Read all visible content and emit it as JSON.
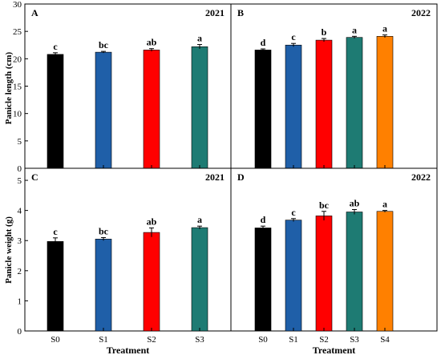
{
  "figure": {
    "y_label_top": "Panicle length (cm)",
    "y_label_bottom": "Panicle weight (g)",
    "x_label": "Treatment"
  },
  "chart_data": [
    {
      "type": "bar",
      "panel": "A",
      "year": "2021",
      "categories": [
        "S0",
        "S1",
        "S2",
        "S3"
      ],
      "values": [
        20.8,
        21.2,
        21.6,
        22.2
      ],
      "errors": [
        0.3,
        0.15,
        0.25,
        0.4
      ],
      "letters": [
        "c",
        "bc",
        "ab",
        "a"
      ],
      "colors": [
        "#000000",
        "#1f5fa8",
        "#ff0000",
        "#1e7b73"
      ],
      "ylim": [
        0,
        30
      ],
      "yticks": [
        0,
        5,
        10,
        15,
        20,
        25,
        30
      ],
      "ylabel": "Panicle length (cm)",
      "xlabel": "",
      "show_xticklabels": false
    },
    {
      "type": "bar",
      "panel": "B",
      "year": "2022",
      "categories": [
        "S0",
        "S1",
        "S2",
        "S3",
        "S4"
      ],
      "values": [
        21.6,
        22.5,
        23.4,
        23.9,
        24.1
      ],
      "errors": [
        0.2,
        0.3,
        0.3,
        0.2,
        0.25
      ],
      "letters": [
        "d",
        "c",
        "b",
        "a",
        "a"
      ],
      "colors": [
        "#000000",
        "#1f5fa8",
        "#ff0000",
        "#1e7b73",
        "#ff8000"
      ],
      "ylim": [
        0,
        30
      ],
      "ylabel": "",
      "xlabel": "",
      "show_xticklabels": false
    },
    {
      "type": "bar",
      "panel": "C",
      "year": "2021",
      "categories": [
        "S0",
        "S1",
        "S2",
        "S3"
      ],
      "values": [
        2.97,
        3.05,
        3.27,
        3.43
      ],
      "errors": [
        0.12,
        0.05,
        0.15,
        0.05
      ],
      "letters": [
        "c",
        "bc",
        "ab",
        "a"
      ],
      "colors": [
        "#000000",
        "#1f5fa8",
        "#ff0000",
        "#1e7b73"
      ],
      "ylim": [
        0,
        5.4
      ],
      "yticks": [
        0,
        1,
        2,
        3,
        4,
        5
      ],
      "ylabel": "Panicle weight (g)",
      "xlabel": "Treatment",
      "show_xticklabels": true
    },
    {
      "type": "bar",
      "panel": "D",
      "year": "2022",
      "categories": [
        "S0",
        "S1",
        "S2",
        "S3",
        "S4"
      ],
      "values": [
        3.42,
        3.68,
        3.82,
        3.95,
        3.97
      ],
      "errors": [
        0.06,
        0.05,
        0.15,
        0.08,
        0.03
      ],
      "letters": [
        "d",
        "c",
        "bc",
        "ab",
        "a"
      ],
      "colors": [
        "#000000",
        "#1f5fa8",
        "#ff0000",
        "#1e7b73",
        "#ff8000"
      ],
      "ylim": [
        0,
        5.4
      ],
      "ylabel": "",
      "xlabel": "Treatment",
      "show_xticklabels": true
    }
  ]
}
